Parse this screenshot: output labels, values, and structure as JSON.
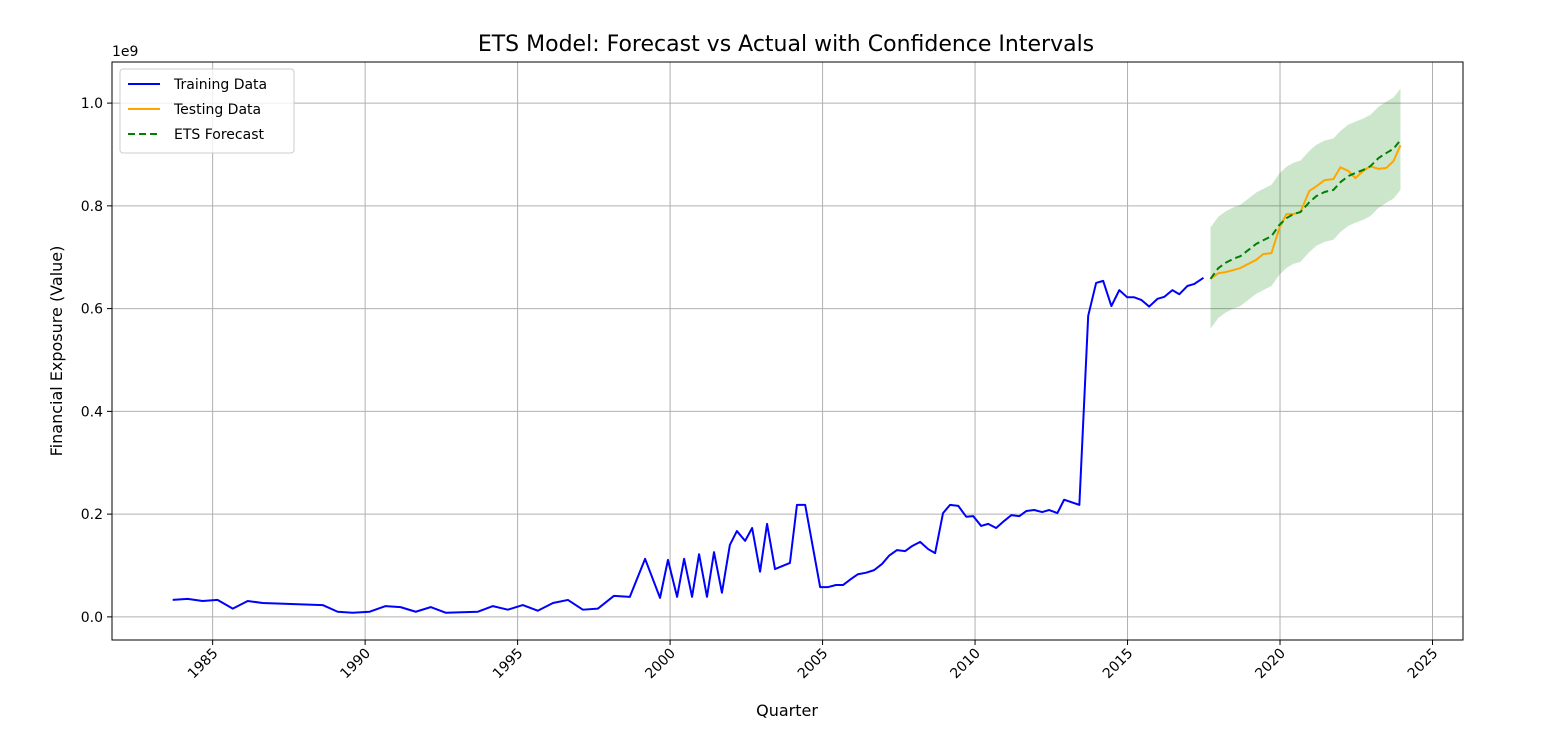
{
  "chart_data": {
    "type": "line",
    "title": "ETS Model: Forecast vs Actual with Confidence Intervals",
    "xlabel": "Quarter",
    "ylabel": "Financial Exposure (Value)",
    "y_offset_label": "1e9",
    "xlim": [
      1981.7,
      2026.0
    ],
    "ylim": [
      -0.045,
      1.08
    ],
    "xticks": [
      1985,
      1990,
      1995,
      2000,
      2005,
      2010,
      2015,
      2020,
      2025
    ],
    "xtick_labels": [
      "1985",
      "1990",
      "1995",
      "2000",
      "2005",
      "2010",
      "2015",
      "2020",
      "2025"
    ],
    "yticks": [
      0.0,
      0.2,
      0.4,
      0.6,
      0.8,
      1.0
    ],
    "ytick_labels": [
      "0.0",
      "0.2",
      "0.4",
      "0.6",
      "0.8",
      "1.0"
    ],
    "grid": true,
    "legend_position": "top-left",
    "series": [
      {
        "name": "Training Data",
        "color": "#0000ff",
        "style": "solid",
        "x": [
          1983.69,
          1984.18,
          1984.67,
          1985.16,
          1985.66,
          1986.15,
          1986.64,
          1988.61,
          1989.1,
          1989.59,
          1990.15,
          1990.67,
          1991.16,
          1991.66,
          1992.15,
          1992.65,
          1993.7,
          1994.19,
          1994.68,
          1995.17,
          1995.66,
          1996.16,
          1996.65,
          1997.14,
          1997.63,
          1998.16,
          1998.68,
          1999.18,
          1999.67,
          1999.93,
          2000.23,
          2000.46,
          2000.72,
          2000.95,
          2001.21,
          2001.44,
          2001.7,
          2001.96,
          2002.19,
          2002.46,
          2002.69,
          2002.95,
          2003.18,
          2003.44,
          2003.93,
          2004.16,
          2004.43,
          2004.92,
          2005.18,
          2005.44,
          2005.67,
          2005.94,
          2006.16,
          2006.43,
          2006.69,
          2006.95,
          2007.18,
          2007.44,
          2007.71,
          2007.94,
          2008.2,
          2008.46,
          2008.69,
          2008.95,
          2009.18,
          2009.45,
          2009.71,
          2009.94,
          2010.2,
          2010.43,
          2010.69,
          2010.96,
          2011.19,
          2011.45,
          2011.68,
          2011.94,
          2012.2,
          2012.43,
          2012.7,
          2012.92,
          2013.42,
          2013.71,
          2013.97,
          2014.2,
          2014.47,
          2014.73,
          2014.99,
          2015.22,
          2015.45,
          2015.71,
          2015.98,
          2016.21,
          2016.47,
          2016.7,
          2016.96,
          2017.19,
          2017.49
        ],
        "values": [
          0.033,
          0.035,
          0.031,
          0.033,
          0.016,
          0.031,
          0.027,
          0.023,
          0.01,
          0.008,
          0.01,
          0.021,
          0.019,
          0.01,
          0.019,
          0.008,
          0.01,
          0.021,
          0.014,
          0.023,
          0.012,
          0.027,
          0.033,
          0.014,
          0.016,
          0.041,
          0.039,
          0.113,
          0.037,
          0.111,
          0.039,
          0.113,
          0.039,
          0.122,
          0.039,
          0.126,
          0.047,
          0.14,
          0.167,
          0.148,
          0.173,
          0.088,
          0.181,
          0.093,
          0.105,
          0.218,
          0.218,
          0.058,
          0.058,
          0.062,
          0.062,
          0.074,
          0.083,
          0.086,
          0.091,
          0.103,
          0.119,
          0.13,
          0.128,
          0.138,
          0.146,
          0.132,
          0.124,
          0.202,
          0.218,
          0.216,
          0.195,
          0.196,
          0.177,
          0.181,
          0.173,
          0.187,
          0.198,
          0.196,
          0.206,
          0.208,
          0.204,
          0.208,
          0.202,
          0.228,
          0.218,
          0.586,
          0.65,
          0.654,
          0.605,
          0.636,
          0.622,
          0.622,
          0.617,
          0.604,
          0.619,
          0.623,
          0.636,
          0.628,
          0.644,
          0.648,
          0.66
        ]
      },
      {
        "name": "Testing Data",
        "color": "#ffa500",
        "style": "solid",
        "x": [
          2017.72,
          2017.98,
          2018.21,
          2018.47,
          2018.7,
          2018.96,
          2019.22,
          2019.45,
          2019.72,
          2019.98,
          2020.21,
          2020.44,
          2020.67,
          2020.96,
          2021.19,
          2021.46,
          2021.75,
          2021.98,
          2022.24,
          2022.47,
          2022.73,
          2022.96,
          2023.23,
          2023.49,
          2023.72,
          2023.95
        ],
        "values": [
          0.658,
          0.669,
          0.671,
          0.675,
          0.679,
          0.687,
          0.695,
          0.706,
          0.708,
          0.757,
          0.784,
          0.784,
          0.788,
          0.829,
          0.838,
          0.85,
          0.852,
          0.875,
          0.868,
          0.854,
          0.868,
          0.877,
          0.872,
          0.874,
          0.887,
          0.918
        ]
      },
      {
        "name": "ETS Forecast",
        "color": "#008000",
        "style": "dashed",
        "x": [
          2017.72,
          2017.98,
          2018.21,
          2018.47,
          2018.7,
          2018.96,
          2019.22,
          2019.45,
          2019.72,
          2019.98,
          2020.21,
          2020.44,
          2020.67,
          2020.96,
          2021.19,
          2021.46,
          2021.75,
          2021.98,
          2022.24,
          2022.47,
          2022.73,
          2022.96,
          2023.23,
          2023.49,
          2023.72,
          2023.95
        ],
        "values": [
          0.658,
          0.679,
          0.689,
          0.697,
          0.702,
          0.714,
          0.726,
          0.733,
          0.741,
          0.763,
          0.776,
          0.784,
          0.788,
          0.807,
          0.819,
          0.827,
          0.831,
          0.846,
          0.858,
          0.864,
          0.87,
          0.877,
          0.893,
          0.903,
          0.911,
          0.928
        ]
      }
    ],
    "confidence_interval": {
      "color": "#008000",
      "x": [
        2017.72,
        2017.98,
        2018.21,
        2018.47,
        2018.7,
        2018.96,
        2019.22,
        2019.45,
        2019.72,
        2019.98,
        2020.21,
        2020.44,
        2020.67,
        2020.96,
        2021.19,
        2021.46,
        2021.75,
        2021.98,
        2022.24,
        2022.47,
        2022.73,
        2022.96,
        2023.23,
        2023.49,
        2023.72,
        2023.95
      ],
      "upper": [
        0.758,
        0.779,
        0.789,
        0.797,
        0.802,
        0.814,
        0.826,
        0.833,
        0.841,
        0.863,
        0.876,
        0.884,
        0.888,
        0.907,
        0.919,
        0.927,
        0.931,
        0.946,
        0.958,
        0.964,
        0.97,
        0.977,
        0.993,
        1.003,
        1.011,
        1.028
      ],
      "lower": [
        0.561,
        0.582,
        0.592,
        0.6,
        0.605,
        0.617,
        0.629,
        0.636,
        0.644,
        0.666,
        0.679,
        0.687,
        0.691,
        0.71,
        0.722,
        0.73,
        0.734,
        0.749,
        0.761,
        0.767,
        0.773,
        0.78,
        0.796,
        0.806,
        0.814,
        0.831
      ]
    }
  }
}
